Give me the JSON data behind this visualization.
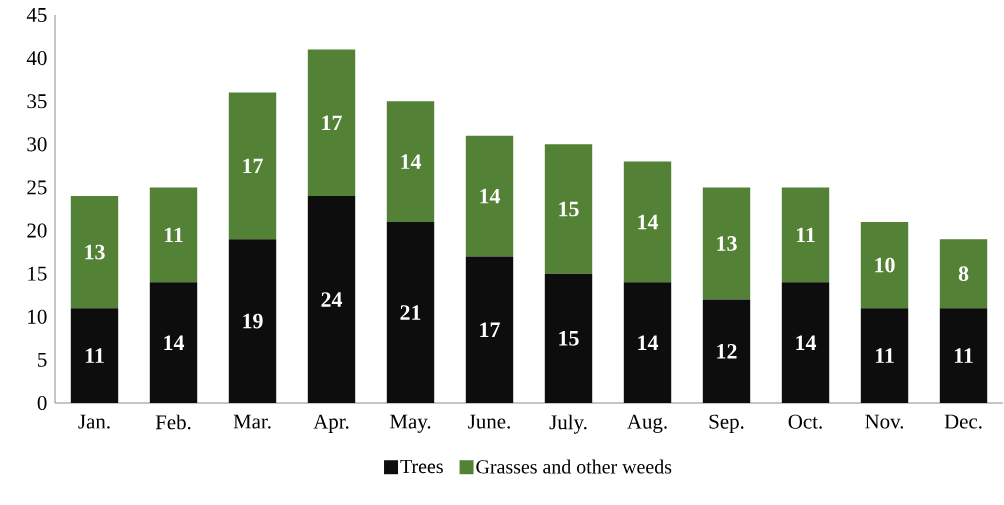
{
  "chart_data": {
    "type": "bar",
    "stacked": true,
    "categories": [
      "Jan.",
      "Feb.",
      "Mar.",
      "Apr.",
      "May.",
      "June.",
      "July.",
      "Aug.",
      "Sep.",
      "Oct.",
      "Nov.",
      "Dec."
    ],
    "series": [
      {
        "name": "Trees",
        "color": "#0d0d0d",
        "values": [
          11,
          14,
          19,
          24,
          21,
          17,
          15,
          14,
          12,
          14,
          11,
          11
        ]
      },
      {
        "name": "Grasses and other weeds",
        "color": "#538135",
        "values": [
          13,
          11,
          17,
          17,
          14,
          14,
          15,
          14,
          13,
          11,
          10,
          8
        ]
      }
    ],
    "ylim": [
      0,
      45
    ],
    "yticks": [
      0,
      5,
      10,
      15,
      20,
      25,
      30,
      35,
      40,
      45
    ],
    "data_labels": true,
    "legend": "bottom"
  }
}
